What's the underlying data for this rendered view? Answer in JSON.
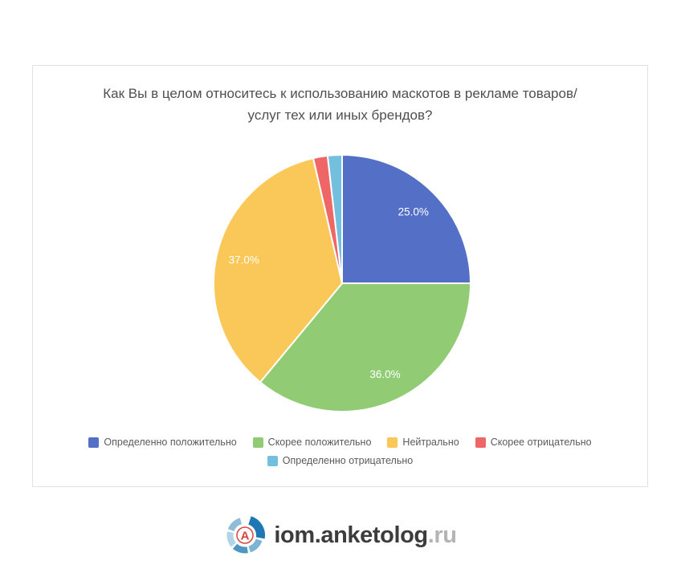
{
  "title": {
    "line1": "Как Вы в целом относитесь к использованию маскотов в рекламе товаров/",
    "line2": "услуг тех или иных брендов?"
  },
  "chart_data": {
    "type": "pie",
    "title": "Как Вы в целом относитесь к использованию маскотов в рекламе товаров/услуг тех или иных брендов?",
    "categories": [
      "Определенно положительно",
      "Скорее положительно",
      "Нейтрально",
      "Скорее отрицательно",
      "Определенно отрицательно"
    ],
    "values": [
      25.0,
      36.0,
      37.0,
      1.0,
      1.0
    ],
    "unit": "percent",
    "slice_labels": [
      "25.0%",
      "36.0%",
      "37.0%",
      "",
      ""
    ],
    "colors": [
      "#5470c6",
      "#91cc75",
      "#fac858",
      "#ee6666",
      "#73c0de"
    ],
    "label_color": "#ffffff",
    "legend_position": "bottom",
    "start_angle": "north",
    "direction": "clockwise",
    "render_angles_deg": [
      90,
      129.6,
      127.4,
      6.5,
      6.5
    ],
    "label_radius_ratio": 0.785,
    "radius_px": 160,
    "slice_border_color": "#ffffff",
    "slice_border_width": 2
  },
  "footer": {
    "logo_icon": "anketolog-ring-icon",
    "logo_text_main": "iom.anketolog",
    "logo_text_suffix": ".ru",
    "logo_red": "#d9453f",
    "logo_blues": [
      "#1f78b4",
      "#7cb4d5",
      "#4c97c2",
      "#b3d3e6",
      "#8fbdd9"
    ]
  }
}
